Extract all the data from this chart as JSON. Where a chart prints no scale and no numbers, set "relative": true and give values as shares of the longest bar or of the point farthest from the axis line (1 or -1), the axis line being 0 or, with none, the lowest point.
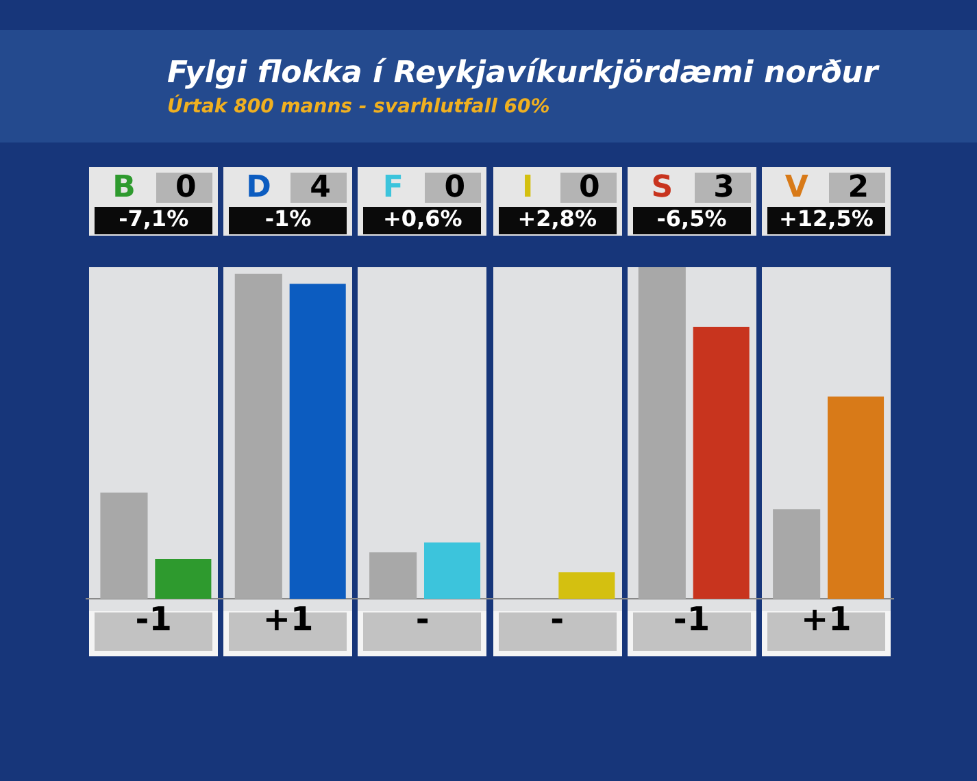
{
  "chart_data": {
    "type": "bar",
    "title": "Fylgi flokka í Reykjavíkurkjördæmi norður",
    "subtitle": "Úrtak 800 manns - svarhlutfall 60%",
    "categories": [
      "B",
      "D",
      "F",
      "I",
      "S",
      "V"
    ],
    "relative": true,
    "series": [
      {
        "color": "#a8a8a8",
        "values": [
          0.32,
          0.98,
          0.14,
          0,
          1,
          0.27
        ]
      },
      {
        "colors": [
          "#2e9a2e",
          "#0c5cc0",
          "#3cc4dc",
          "#d4c010",
          "#c8341e",
          "#d87a18"
        ],
        "values": [
          0.12,
          0.95,
          0.17,
          0.08,
          0.82,
          0.61
        ]
      }
    ],
    "annotations": [
      "0",
      "4",
      "0",
      "0",
      "3",
      "2",
      "-7,1%",
      "-1%",
      "+0,6%",
      "+2,8%",
      "-6,5%",
      "+12,5%",
      "-1",
      "+1",
      "-",
      "-",
      "-1",
      "+1"
    ],
    "legend": false
  }
}
